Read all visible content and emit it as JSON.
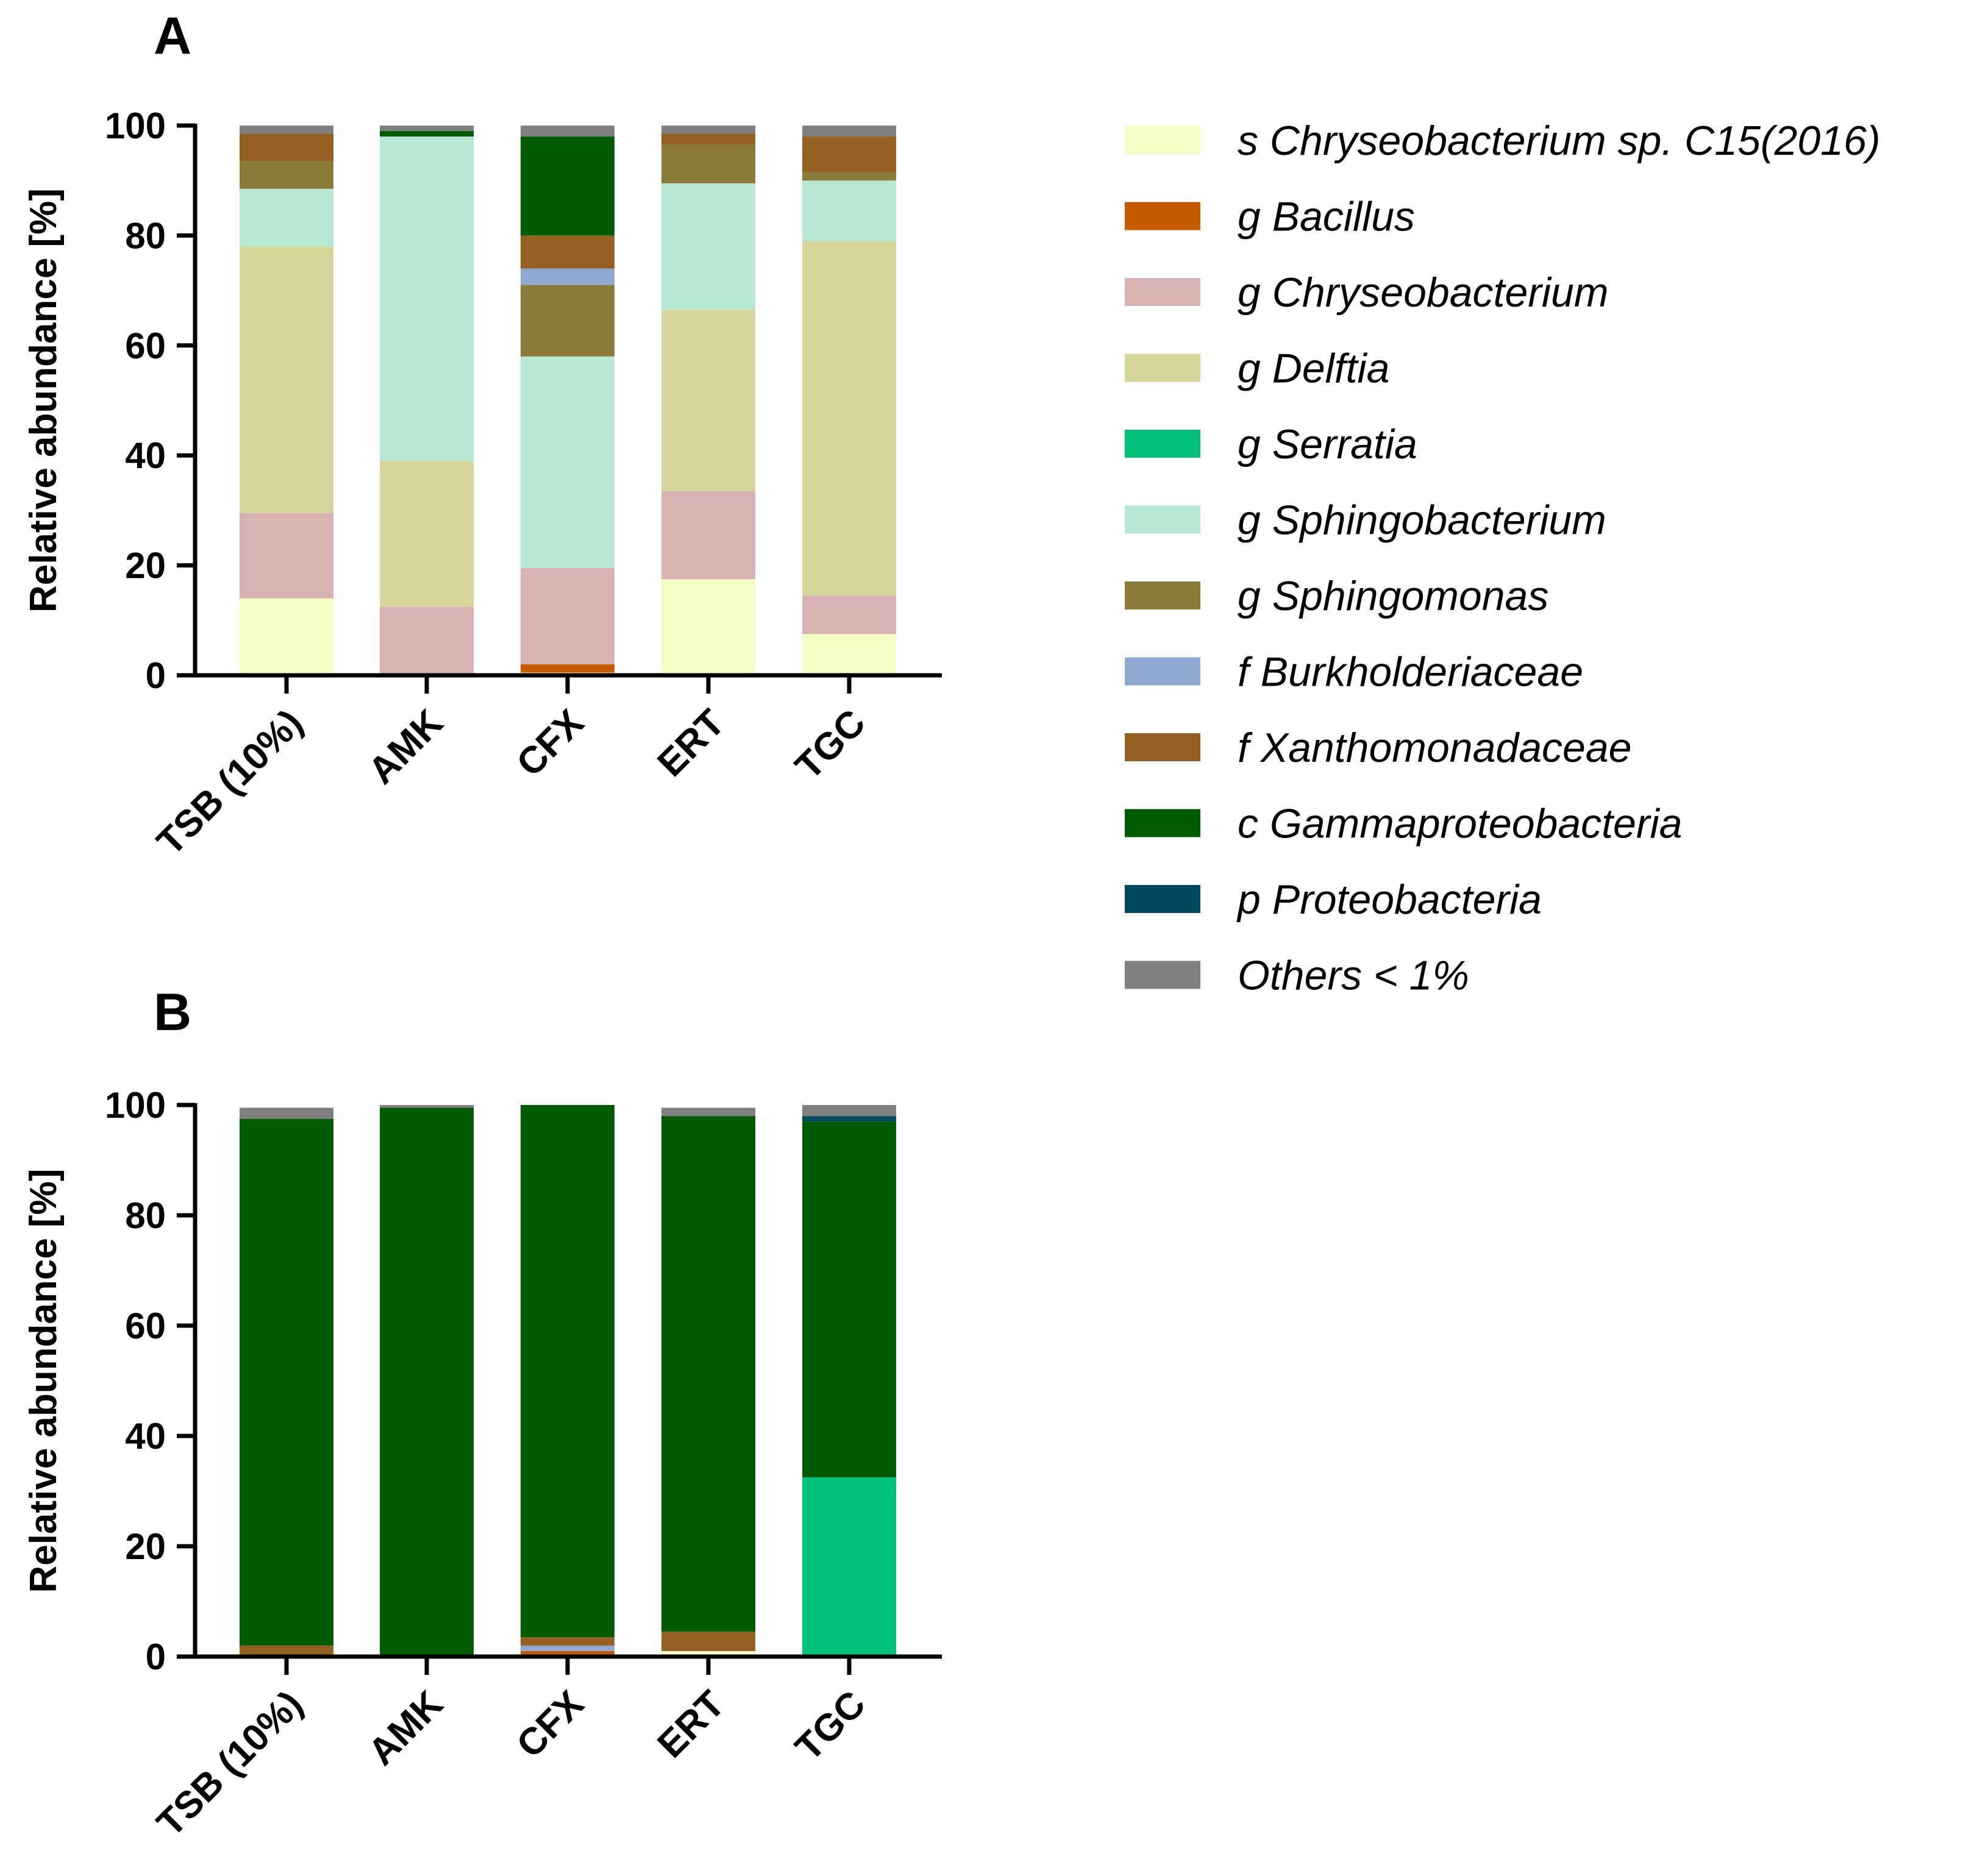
{
  "chart_data": [
    {
      "panel": "A",
      "type": "bar",
      "stacked": true,
      "categories": [
        "TSB (10%)",
        "AMK",
        "CFX",
        "ERT",
        "TGC"
      ],
      "ylabel": "Relative abundance [%]",
      "xlabel": "",
      "ylim": [
        0,
        100
      ],
      "yticks": [
        0,
        20,
        40,
        60,
        80,
        100
      ],
      "series": [
        {
          "name": "s Chryseobacterium sp. C15(2016)",
          "values": [
            14,
            0,
            0.5,
            17.5,
            7.5
          ]
        },
        {
          "name": "g Bacillus",
          "values": [
            0,
            0,
            1.5,
            0,
            0
          ]
        },
        {
          "name": "g Chryseobacterium",
          "values": [
            15.5,
            12.5,
            17.5,
            16,
            7
          ]
        },
        {
          "name": "g Delftia",
          "values": [
            48.5,
            26.5,
            0,
            33,
            64.5
          ]
        },
        {
          "name": "g Serratia",
          "values": [
            0,
            0,
            0,
            0,
            0
          ]
        },
        {
          "name": "g Sphingobacterium",
          "values": [
            10.5,
            59,
            38.5,
            23,
            11
          ]
        },
        {
          "name": "g Sphingomonas",
          "values": [
            5,
            0,
            13,
            7,
            1.5
          ]
        },
        {
          "name": "f Burkholderiaceae",
          "values": [
            0,
            0,
            3,
            0,
            0
          ]
        },
        {
          "name": "f Xanthomonadaceae",
          "values": [
            5,
            0,
            6,
            2,
            6.5
          ]
        },
        {
          "name": "c Gammaproteobacteria",
          "values": [
            0,
            1,
            18,
            0,
            0
          ]
        },
        {
          "name": "p Proteobacteria",
          "values": [
            0,
            0,
            0,
            0,
            0
          ]
        },
        {
          "name": "Others < 1%",
          "values": [
            1.5,
            1,
            2,
            1.5,
            2
          ]
        }
      ]
    },
    {
      "panel": "B",
      "type": "bar",
      "stacked": true,
      "categories": [
        "TSB (10%)",
        "AMK",
        "CFX",
        "ERT",
        "TGC"
      ],
      "ylabel": "Relative abundance [%]",
      "xlabel": "",
      "ylim": [
        0,
        100
      ],
      "yticks": [
        0,
        20,
        40,
        60,
        80,
        100
      ],
      "series": [
        {
          "name": "s Chryseobacterium sp. C15(2016)",
          "values": [
            0,
            0,
            0,
            1,
            0
          ]
        },
        {
          "name": "g Bacillus",
          "values": [
            0,
            0,
            1,
            0,
            0
          ]
        },
        {
          "name": "g Chryseobacterium",
          "values": [
            0,
            0,
            0,
            0,
            0
          ]
        },
        {
          "name": "g Delftia",
          "values": [
            0,
            0,
            0,
            0,
            0
          ]
        },
        {
          "name": "g Serratia",
          "values": [
            0,
            0,
            0,
            0,
            32.5
          ]
        },
        {
          "name": "g Sphingobacterium",
          "values": [
            0,
            0,
            0,
            0,
            0
          ]
        },
        {
          "name": "g Sphingomonas",
          "values": [
            0,
            0,
            0,
            0,
            0
          ]
        },
        {
          "name": "f Burkholderiaceae",
          "values": [
            0,
            0,
            1,
            0,
            0
          ]
        },
        {
          "name": "f Xanthomonadaceae",
          "values": [
            2,
            0,
            1.5,
            3.5,
            0
          ]
        },
        {
          "name": "c Gammaproteobacteria",
          "values": [
            95.5,
            99.5,
            96.5,
            93.5,
            64.5
          ]
        },
        {
          "name": "p Proteobacteria",
          "values": [
            0,
            0,
            0,
            0,
            1
          ]
        },
        {
          "name": "Others < 1%",
          "values": [
            2,
            0.5,
            0,
            1.5,
            2
          ]
        }
      ]
    }
  ],
  "legend": {
    "items": [
      {
        "label": "s Chryseobacterium sp. C15(2016)",
        "color": "#f3ffc2"
      },
      {
        "label": "g Bacillus",
        "color": "#c55a00"
      },
      {
        "label": "g Chryseobacterium",
        "color": "#d8b2b2"
      },
      {
        "label": "g Delftia",
        "color": "#d6d69a"
      },
      {
        "label": "g Serratia",
        "color": "#00c07a"
      },
      {
        "label": "g Sphingobacterium",
        "color": "#b6e8d4"
      },
      {
        "label": "g Sphingomonas",
        "color": "#8b7b39"
      },
      {
        "label": "f Burkholderiaceae",
        "color": "#8fa9d2"
      },
      {
        "label": "f Xanthomonadaceae",
        "color": "#956122"
      },
      {
        "label": "c Gammaproteobacteria",
        "color": "#015c01"
      },
      {
        "label": "p Proteobacteria",
        "color": "#014a5e"
      },
      {
        "label": "Others < 1%",
        "color": "#808080"
      }
    ]
  }
}
